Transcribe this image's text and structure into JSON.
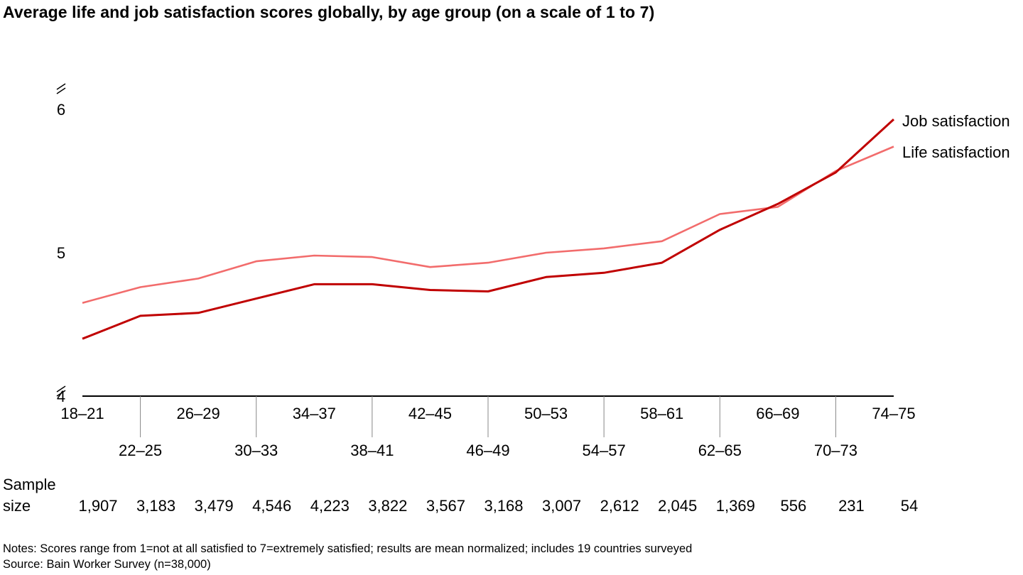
{
  "title": "Average life and job satisfaction scores globally, by age group (on a scale of 1 to 7)",
  "notes": "Notes: Scores range from 1=not at all satisfied to 7=extremely satisfied; results are mean normalized; includes 19 countries surveyed",
  "source": "Source: Bain Worker Survey (n=38,000)",
  "chart_data": {
    "type": "line",
    "title": "Average life and job satisfaction scores globally, by age group (on a scale of 1 to 7)",
    "categories": [
      "18–21",
      "22–25",
      "26–29",
      "30–33",
      "34–37",
      "38–41",
      "42–45",
      "46–49",
      "50–53",
      "54–57",
      "58–61",
      "62–65",
      "66–69",
      "70–73",
      "74–75"
    ],
    "yticks": [
      "4",
      "5",
      "6"
    ],
    "ylim": [
      4,
      6.05
    ],
    "axis_break": true,
    "grid": false,
    "legend_placement": "right, inline labels at line ends",
    "series": [
      {
        "name": "Job satisfaction",
        "color": "#c00000",
        "values": [
          4.4,
          4.56,
          4.58,
          4.68,
          4.78,
          4.78,
          4.74,
          4.73,
          4.83,
          4.86,
          4.93,
          5.16,
          5.34,
          5.56,
          5.93
        ]
      },
      {
        "name": "Life satisfaction",
        "color": "#f26c6c",
        "values": [
          4.65,
          4.76,
          4.82,
          4.94,
          4.98,
          4.97,
          4.9,
          4.93,
          5.0,
          5.03,
          5.08,
          5.27,
          5.32,
          5.57,
          5.74
        ]
      }
    ],
    "sample_size_label_1": "Sample",
    "sample_size_label_2": "size",
    "sample_sizes": [
      "1,907",
      "3,183",
      "3,479",
      "4,546",
      "4,223",
      "3,822",
      "3,567",
      "3,168",
      "3,007",
      "2,612",
      "2,045",
      "1,369",
      "556",
      "231",
      "54"
    ]
  }
}
